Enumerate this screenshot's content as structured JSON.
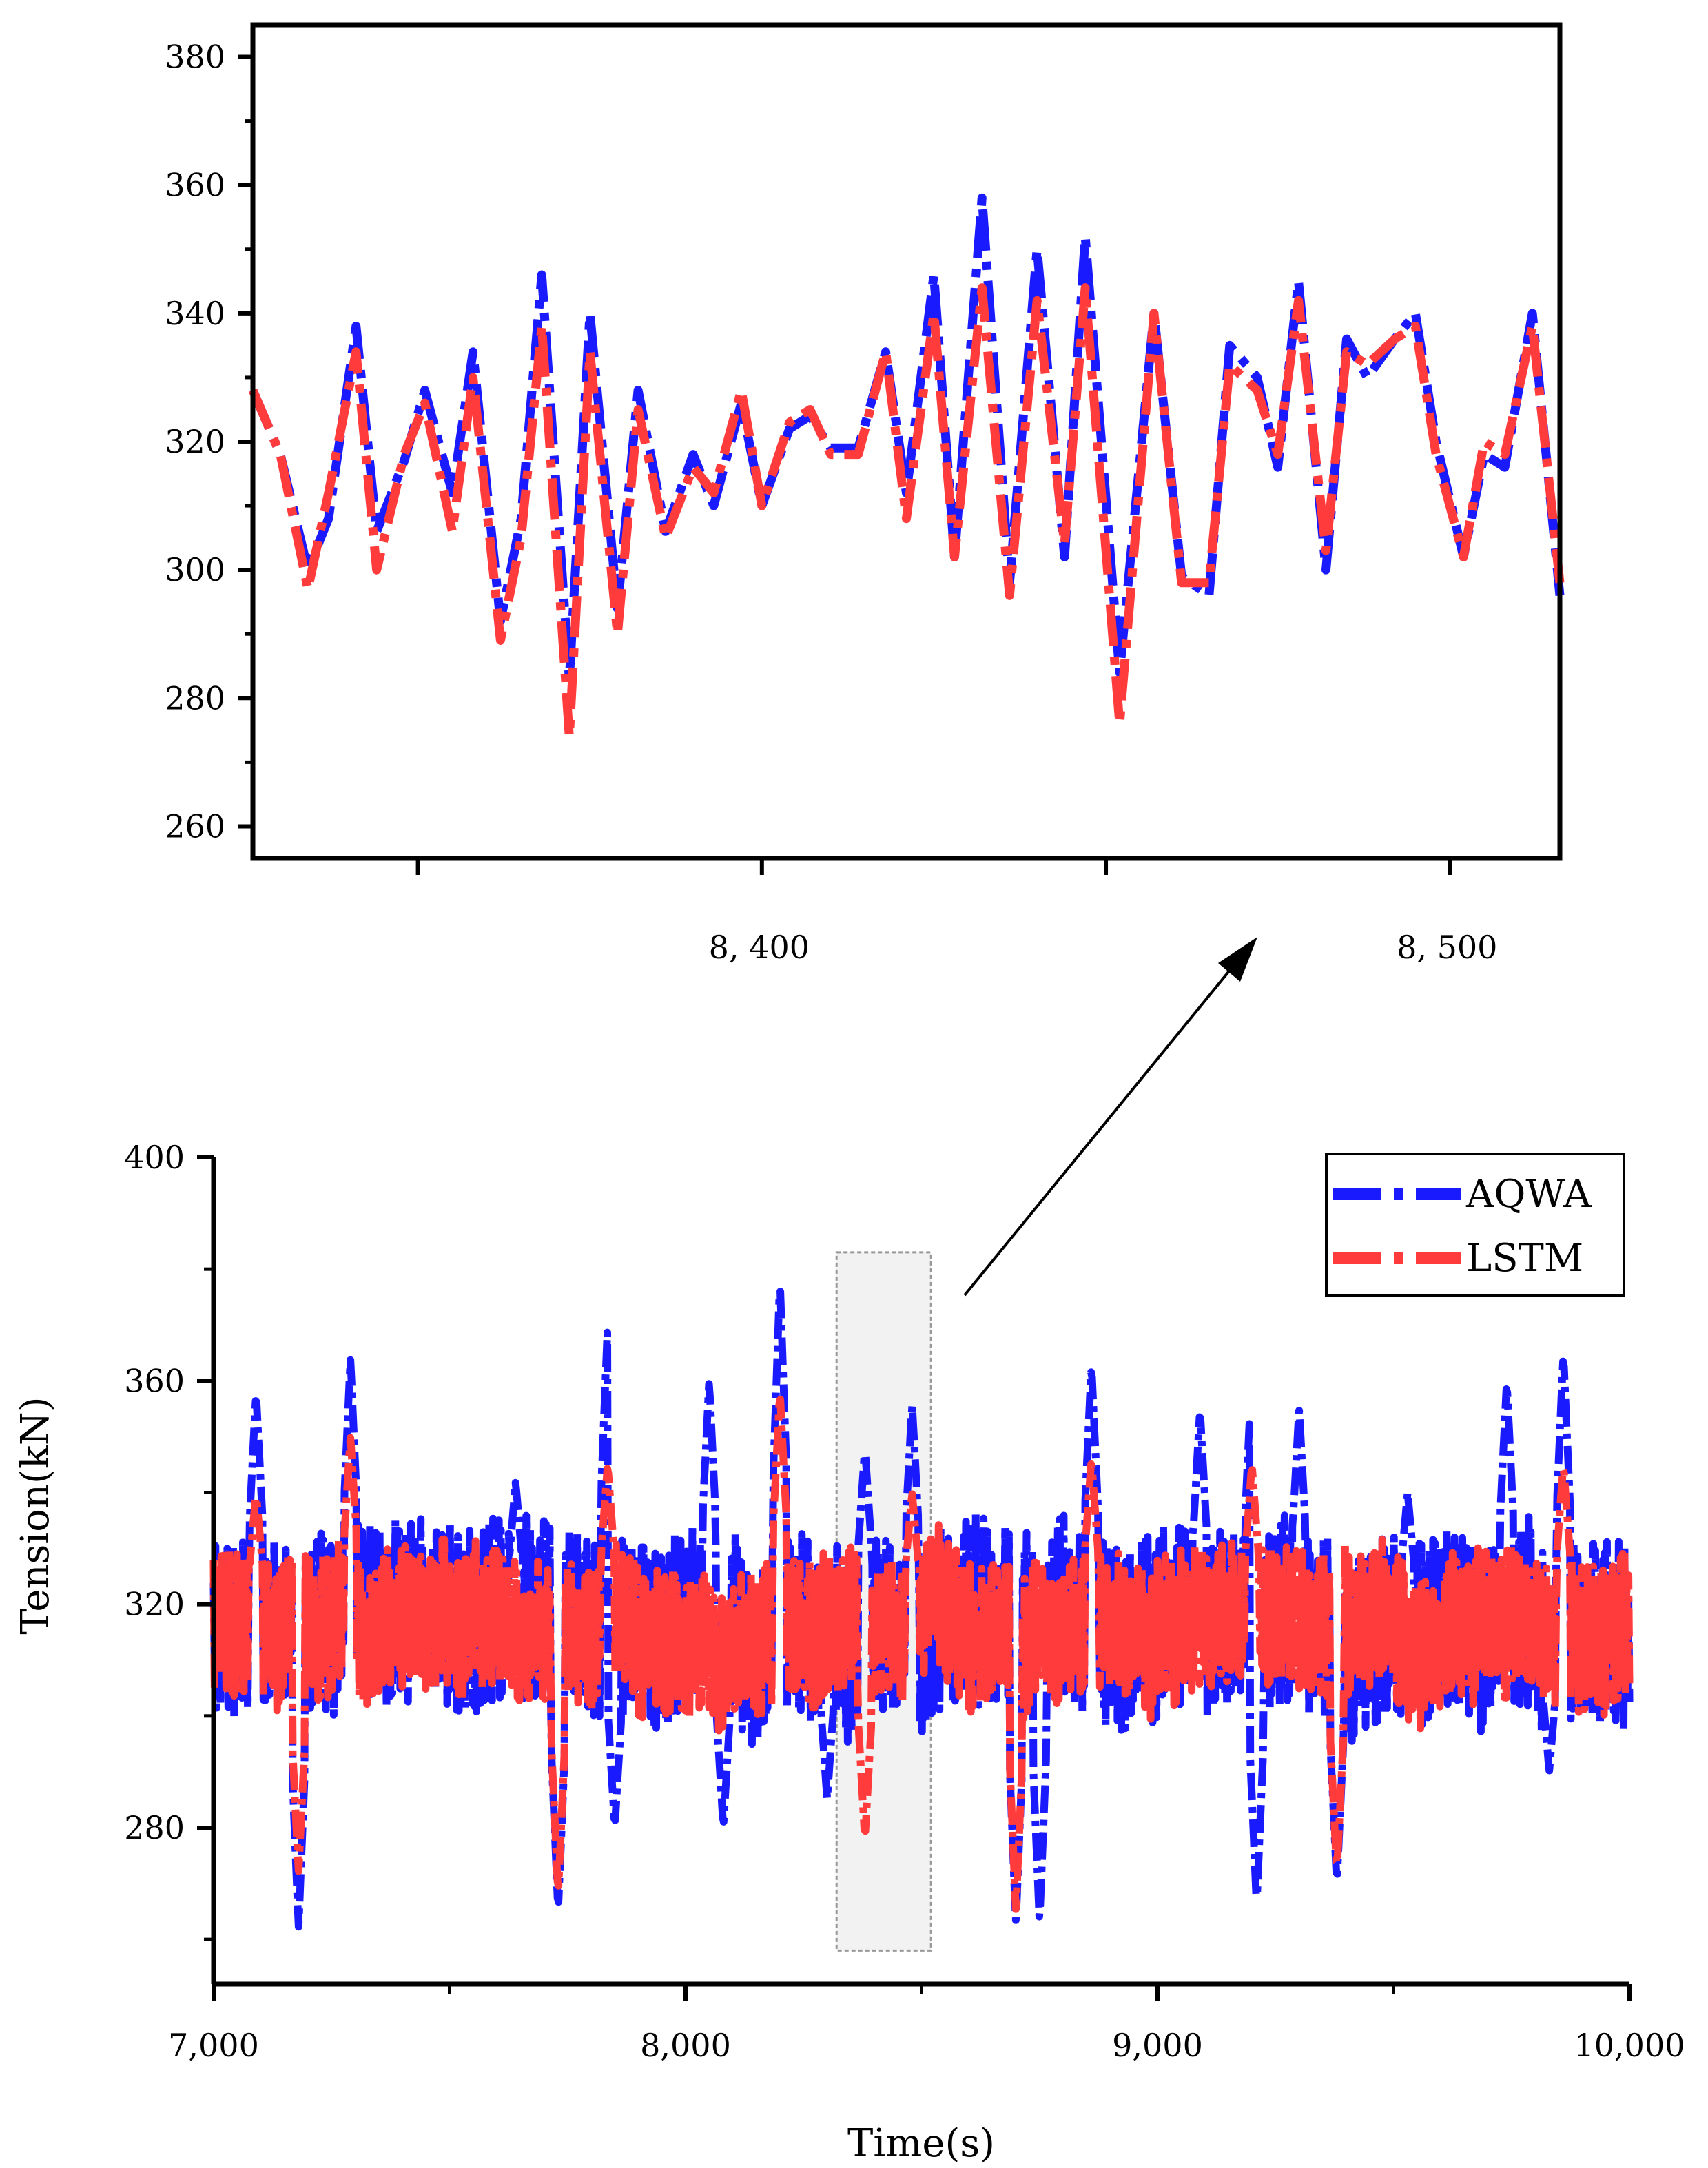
{
  "chart_data": [
    {
      "type": "line",
      "panel": "inset",
      "ylim": [
        255,
        385
      ],
      "xlim": [
        8326,
        8516
      ],
      "yticks": [
        260,
        280,
        300,
        320,
        340,
        360,
        380
      ],
      "ytick_labels": [
        "260",
        "280",
        "300",
        "320",
        "340",
        "360",
        "380"
      ],
      "xticks": [
        8400,
        8500
      ],
      "xtick_labels": [
        "8, 400",
        "8, 500"
      ],
      "minor_xticks": [
        8350,
        8450
      ],
      "series": [
        {
          "name": "AQWA",
          "color": "#1a1aff",
          "x": [
            8326,
            8330,
            8334,
            8337,
            8341,
            8344,
            8348,
            8351,
            8355,
            8358,
            8362,
            8365,
            8368,
            8372,
            8375,
            8379,
            8382,
            8386,
            8390,
            8393,
            8397,
            8400,
            8404,
            8407,
            8410,
            8414,
            8418,
            8421,
            8425,
            8428,
            8432,
            8436,
            8440,
            8444,
            8447,
            8452,
            8457,
            8461,
            8465,
            8468,
            8472,
            8475,
            8478,
            8482,
            8485,
            8488,
            8492,
            8495,
            8498,
            8502,
            8505,
            8508,
            8512,
            8516
          ],
          "y": [
            328,
            318,
            300,
            308,
            338,
            306,
            317,
            328,
            312,
            334,
            292,
            308,
            346,
            283,
            340,
            294,
            328,
            306,
            318,
            310,
            326,
            310,
            322,
            324,
            319,
            319,
            334,
            312,
            346,
            302,
            358,
            298,
            350,
            302,
            352,
            284,
            340,
            299,
            296,
            335,
            330,
            316,
            345,
            300,
            336,
            330,
            336,
            340,
            320,
            302,
            318,
            316,
            340,
            296
          ]
        },
        {
          "name": "LSTM",
          "color": "#ff3b3b",
          "x": [
            8326,
            8330,
            8334,
            8337,
            8341,
            8344,
            8348,
            8351,
            8355,
            8358,
            8362,
            8365,
            8368,
            8372,
            8375,
            8379,
            8382,
            8386,
            8390,
            8393,
            8397,
            8400,
            8404,
            8407,
            8410,
            8414,
            8418,
            8421,
            8425,
            8428,
            8432,
            8436,
            8440,
            8444,
            8447,
            8452,
            8457,
            8461,
            8465,
            8468,
            8472,
            8475,
            8478,
            8482,
            8485,
            8488,
            8492,
            8495,
            8498,
            8502,
            8505,
            8508,
            8512,
            8516
          ],
          "y": [
            328,
            318,
            297,
            312,
            334,
            300,
            318,
            326,
            306,
            330,
            289,
            305,
            338,
            274,
            334,
            290,
            325,
            305,
            316,
            312,
            328,
            310,
            323,
            325,
            318,
            318,
            334,
            308,
            340,
            302,
            344,
            296,
            342,
            304,
            344,
            276,
            340,
            298,
            298,
            332,
            328,
            318,
            342,
            303,
            334,
            332,
            336,
            338,
            318,
            302,
            320,
            318,
            338,
            298
          ]
        }
      ]
    },
    {
      "type": "line",
      "panel": "main",
      "xlabel": "Time(s)",
      "ylabel": "Tension(kN)",
      "ylim": [
        252,
        400
      ],
      "xlim": [
        7000,
        10000
      ],
      "yticks": [
        280,
        320,
        360,
        400
      ],
      "ytick_labels": [
        "280",
        "320",
        "360",
        "400"
      ],
      "minor_yticks": [
        260,
        300,
        340,
        380
      ],
      "xticks": [
        7000,
        8000,
        9000,
        10000
      ],
      "xtick_labels": [
        "7,000",
        "8,000",
        "9,000",
        "10,000"
      ],
      "minor_xticks": [
        7500,
        8500,
        9500
      ],
      "legend": {
        "position": "top-right",
        "entries": [
          "AQWA",
          "LSTM"
        ]
      },
      "zoom_region": {
        "x": [
          8320,
          8520
        ],
        "y": [
          258,
          383
        ]
      },
      "series": [
        {
          "name": "AQWA",
          "color": "#1a1aff",
          "generator": {
            "seed": 11,
            "mean": 316,
            "amp": 15,
            "count": 1450
          }
        },
        {
          "name": "LSTM",
          "color": "#ff3b3b",
          "generator": {
            "seed": 29,
            "mean": 316,
            "amp": 12,
            "count": 1450
          }
        }
      ],
      "peaks_aqwa": [
        [
          7090,
          358
        ],
        [
          7180,
          262
        ],
        [
          7290,
          364
        ],
        [
          7640,
          342
        ],
        [
          7730,
          265
        ],
        [
          7835,
          370
        ],
        [
          7850,
          280
        ],
        [
          8050,
          360
        ],
        [
          8080,
          280
        ],
        [
          8200,
          378
        ],
        [
          8300,
          285
        ],
        [
          8380,
          348
        ],
        [
          8480,
          356
        ],
        [
          8700,
          263
        ],
        [
          8750,
          263
        ],
        [
          8860,
          363
        ],
        [
          9090,
          355
        ],
        [
          9200,
          362
        ],
        [
          9210,
          266
        ],
        [
          9300,
          355
        ],
        [
          9380,
          352
        ],
        [
          9380,
          270
        ],
        [
          9530,
          340
        ],
        [
          9740,
          360
        ],
        [
          9830,
          290
        ],
        [
          9860,
          365
        ]
      ],
      "peaks_lstm": [
        [
          7090,
          340
        ],
        [
          7180,
          272
        ],
        [
          7290,
          350
        ],
        [
          7730,
          268
        ],
        [
          7835,
          345
        ],
        [
          8200,
          358
        ],
        [
          8380,
          278
        ],
        [
          8480,
          340
        ],
        [
          8700,
          265
        ],
        [
          8860,
          346
        ],
        [
          9200,
          345
        ],
        [
          9380,
          272
        ],
        [
          9860,
          345
        ]
      ]
    }
  ]
}
